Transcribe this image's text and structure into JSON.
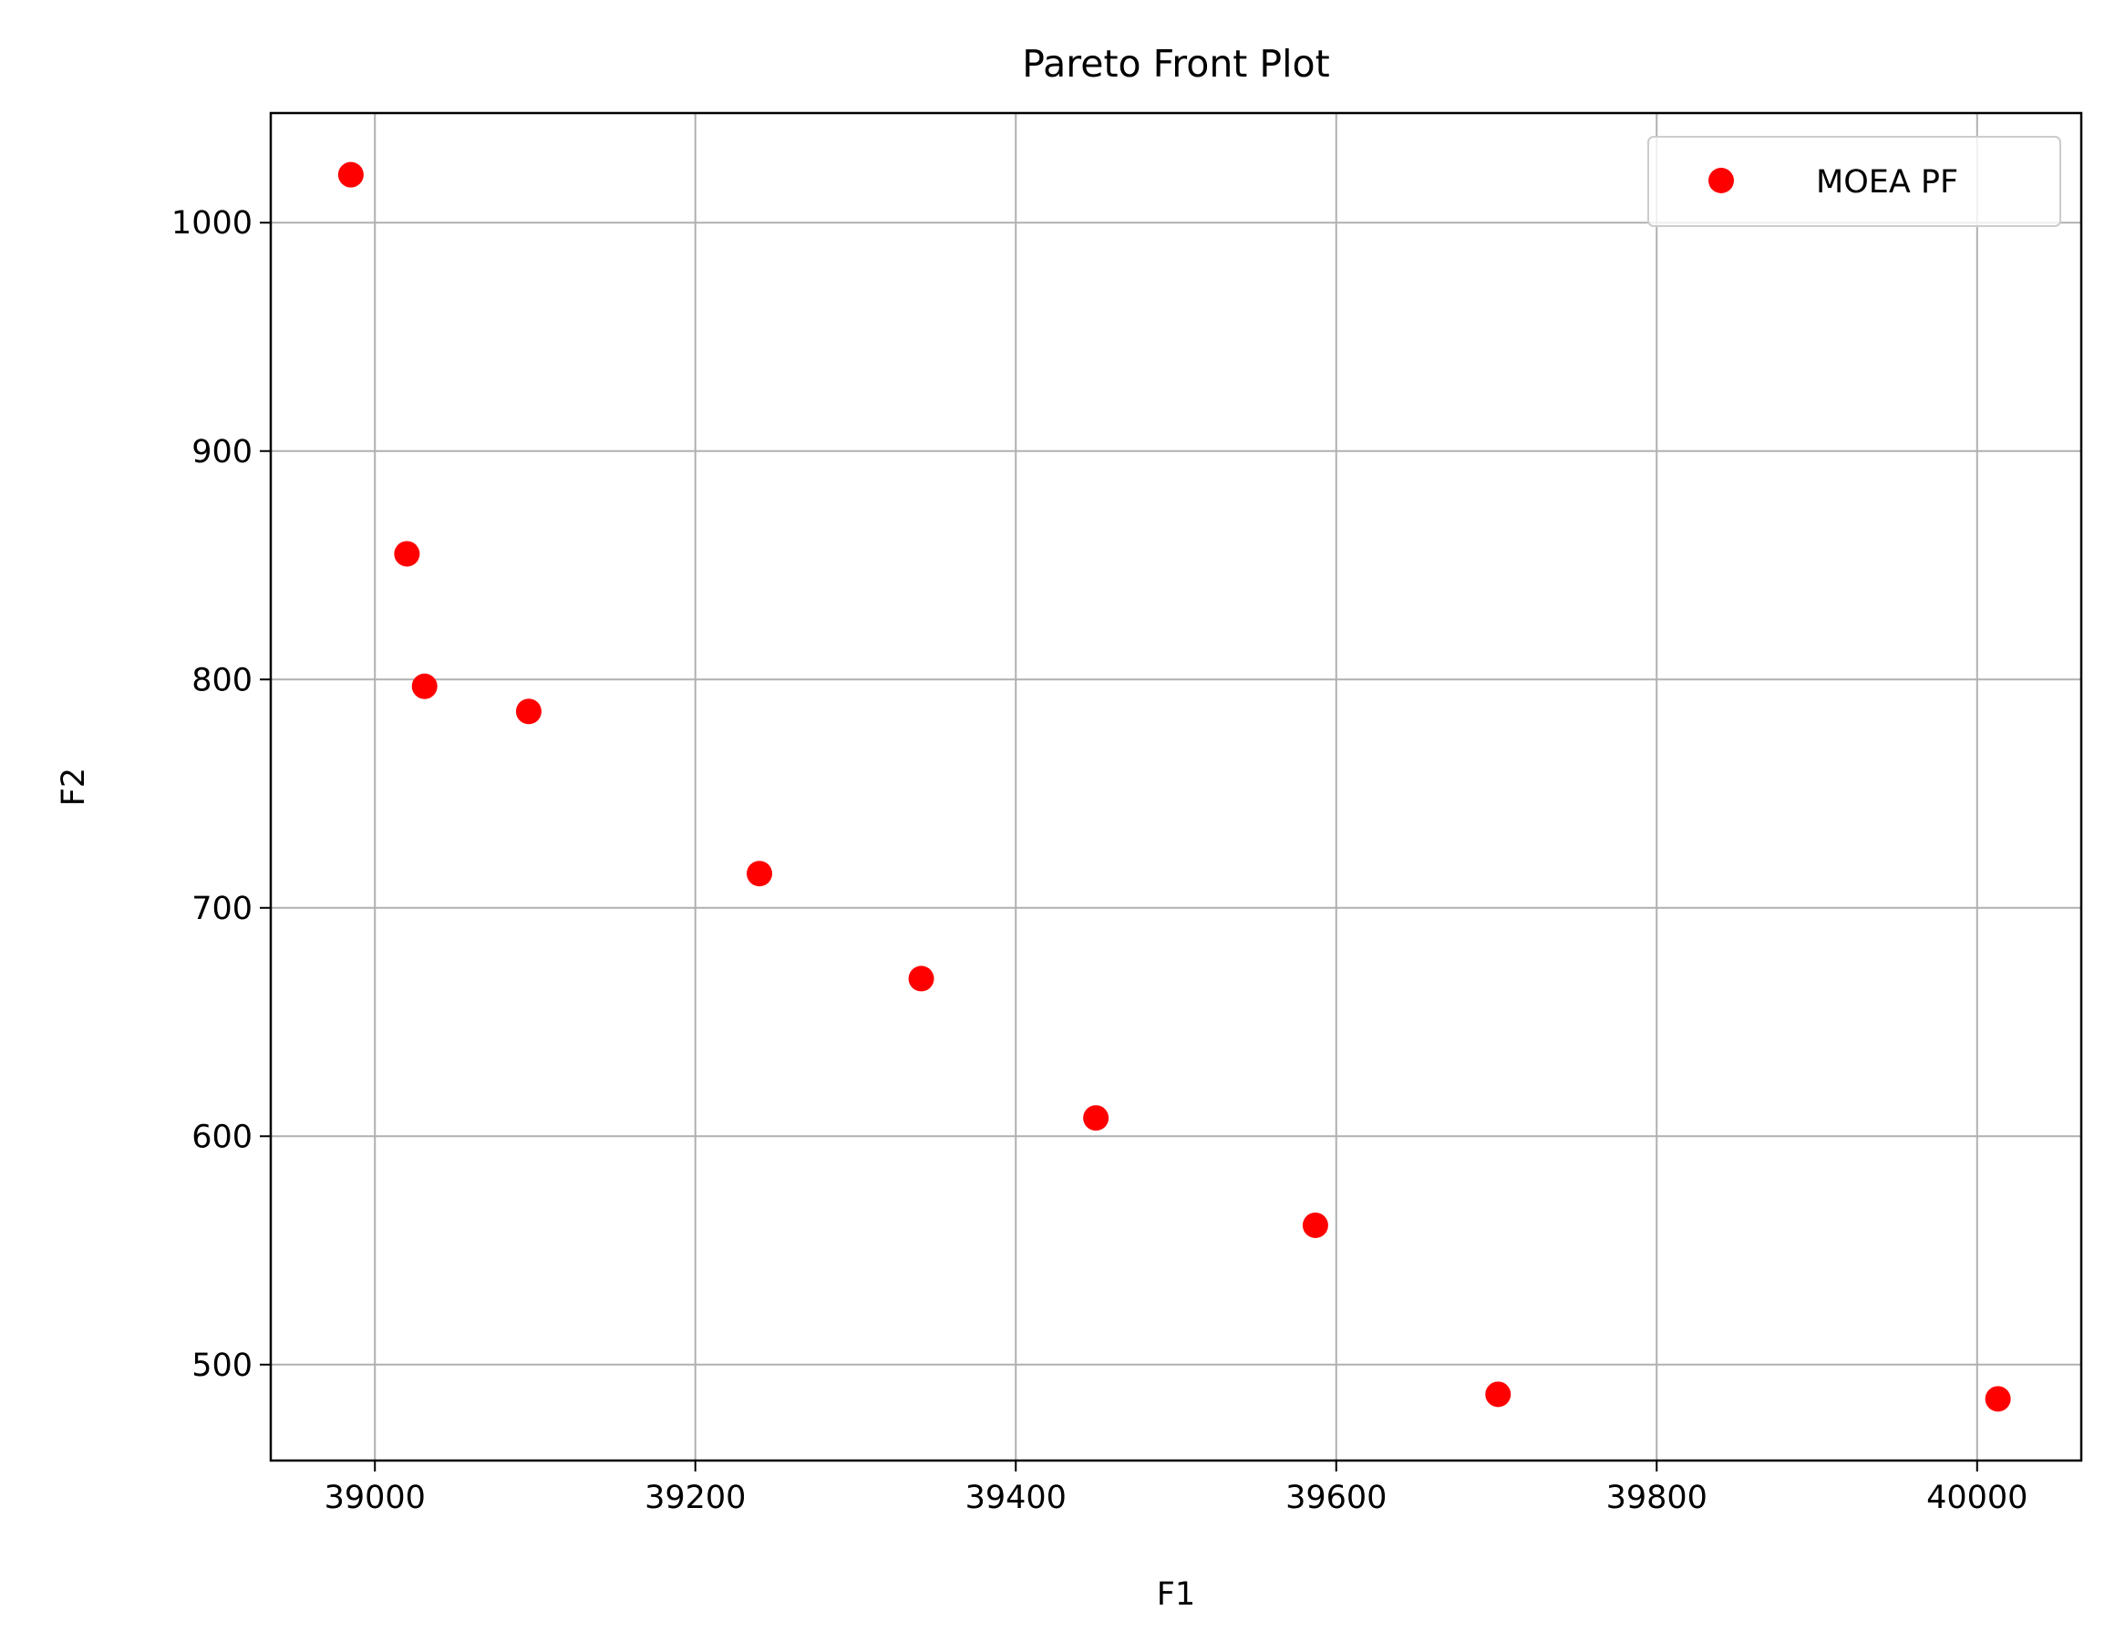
{
  "chart_data": {
    "type": "scatter",
    "title": "Pareto Front Plot",
    "xlabel": "F1",
    "ylabel": "F2",
    "xlim": [
      38935,
      40065
    ],
    "ylim": [
      458,
      1048
    ],
    "xticks": [
      39000,
      39200,
      39400,
      39600,
      39800,
      40000
    ],
    "yticks": [
      500,
      600,
      700,
      800,
      900,
      1000
    ],
    "grid": true,
    "legend_position": "top-right",
    "series": [
      {
        "name": "MOEA PF",
        "color": "#ff0000",
        "marker": "circle",
        "x": [
          38985,
          39020,
          39031,
          39096,
          39240,
          39341,
          39450,
          39587,
          39701,
          40013
        ],
        "y": [
          1021,
          855,
          797,
          786,
          715,
          669,
          608,
          561,
          487,
          485
        ]
      }
    ]
  }
}
